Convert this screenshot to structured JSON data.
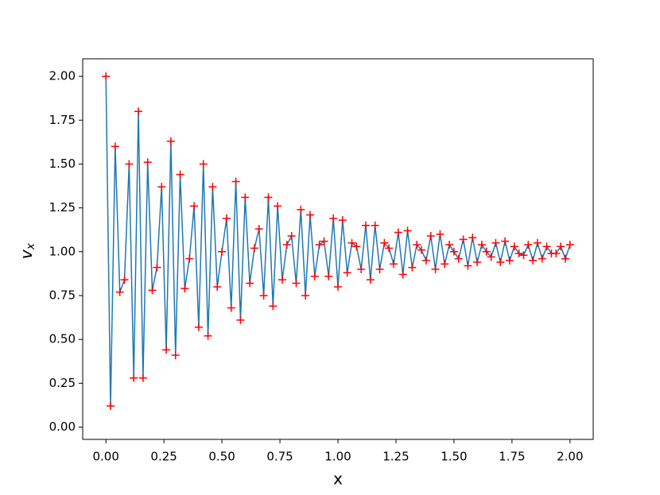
{
  "chart_data": {
    "type": "line-markers",
    "xlabel": "x",
    "ylabel": "v",
    "ylabel_sub": "x",
    "line_color": "#1f77b4",
    "marker_color": "#ff0000",
    "marker": "+",
    "x": [
      0,
      0.02,
      0.04,
      0.06,
      0.08,
      0.1,
      0.12,
      0.14,
      0.16,
      0.18,
      0.2,
      0.22,
      0.24,
      0.26,
      0.28,
      0.3,
      0.32,
      0.34,
      0.36,
      0.38,
      0.4,
      0.42,
      0.44,
      0.46,
      0.48,
      0.5,
      0.52,
      0.54,
      0.56,
      0.58,
      0.6,
      0.62,
      0.64,
      0.66,
      0.68,
      0.7,
      0.72,
      0.74,
      0.76,
      0.78,
      0.8,
      0.82,
      0.84,
      0.86,
      0.88,
      0.9,
      0.92,
      0.94,
      0.96,
      0.98,
      1,
      1.02,
      1.04,
      1.06,
      1.08,
      1.1,
      1.12,
      1.14,
      1.16,
      1.18,
      1.2,
      1.22,
      1.24,
      1.26,
      1.28,
      1.3,
      1.32,
      1.34,
      1.36,
      1.38,
      1.4,
      1.42,
      1.44,
      1.46,
      1.48,
      1.5,
      1.52,
      1.54,
      1.56,
      1.58,
      1.6,
      1.62,
      1.64,
      1.66,
      1.68,
      1.7,
      1.72,
      1.74,
      1.76,
      1.78,
      1.8,
      1.82,
      1.84,
      1.86,
      1.88,
      1.9,
      1.92,
      1.94,
      1.96,
      1.98,
      2
    ],
    "values": [
      2.0,
      0.12,
      1.6,
      0.77,
      0.84,
      1.5,
      0.28,
      1.8,
      0.28,
      1.51,
      0.78,
      0.91,
      1.37,
      0.44,
      1.63,
      0.41,
      1.44,
      0.79,
      0.96,
      1.26,
      0.57,
      1.5,
      0.52,
      1.37,
      0.8,
      1.0,
      1.19,
      0.68,
      1.4,
      0.61,
      1.31,
      0.82,
      1.02,
      1.13,
      0.75,
      1.31,
      0.69,
      1.26,
      0.84,
      1.04,
      1.09,
      0.82,
      1.24,
      0.75,
      1.21,
      0.86,
      1.04,
      1.06,
      0.86,
      1.19,
      0.8,
      1.18,
      0.88,
      1.05,
      1.03,
      0.9,
      1.15,
      0.84,
      1.15,
      0.9,
      1.05,
      1.02,
      0.93,
      1.11,
      0.87,
      1.12,
      0.91,
      1.04,
      1.01,
      0.95,
      1.09,
      0.9,
      1.1,
      0.93,
      1.04,
      1.0,
      0.96,
      1.07,
      0.92,
      1.08,
      0.94,
      1.04,
      1.0,
      0.97,
      1.05,
      0.94,
      1.06,
      0.95,
      1.03,
      0.99,
      0.98,
      1.04,
      0.95,
      1.05,
      0.96,
      1.03,
      0.99,
      0.99,
      1.03,
      0.96,
      1.04
    ],
    "xlim": [
      -0.1,
      2.1
    ],
    "xticks": [
      {
        "value": 0,
        "label": "0.00"
      },
      {
        "value": 0.25,
        "label": "0.25"
      },
      {
        "value": 0.5,
        "label": "0.50"
      },
      {
        "value": 0.75,
        "label": "0.75"
      },
      {
        "value": 1,
        "label": "1.00"
      },
      {
        "value": 1.25,
        "label": "1.25"
      },
      {
        "value": 1.5,
        "label": "1.50"
      },
      {
        "value": 1.75,
        "label": "1.75"
      },
      {
        "value": 2,
        "label": "2.00"
      }
    ],
    "ylim": [
      -0.07,
      2.1
    ],
    "yticks": [
      {
        "value": 0,
        "label": "0.00"
      },
      {
        "value": 0.25,
        "label": "0.25"
      },
      {
        "value": 0.5,
        "label": "0.50"
      },
      {
        "value": 0.75,
        "label": "0.75"
      },
      {
        "value": 1,
        "label": "1.00"
      },
      {
        "value": 1.25,
        "label": "1.25"
      },
      {
        "value": 1.5,
        "label": "1.50"
      },
      {
        "value": 1.75,
        "label": "1.75"
      },
      {
        "value": 2,
        "label": "2.00"
      }
    ],
    "grid": false
  }
}
